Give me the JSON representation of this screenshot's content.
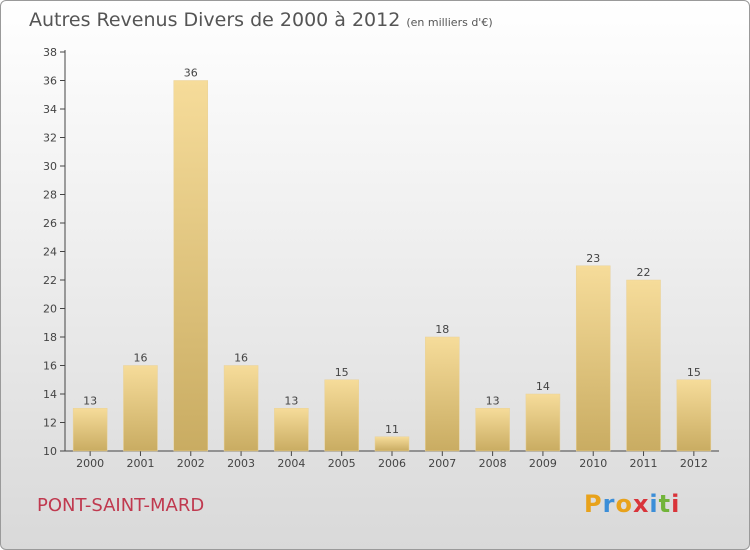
{
  "header": {
    "title": "Autres Revenus Divers de 2000 à 2012",
    "unit": "(en milliers d'€)"
  },
  "footer": {
    "commune": "PONT-SAINT-MARD",
    "logo_letters": [
      "P",
      "r",
      "o",
      "x",
      "i",
      "t",
      "i"
    ],
    "logo_colors": [
      "#e8a21b",
      "#3b8ed8",
      "#e8a21b",
      "#d9343a",
      "#3b8ed8",
      "#72b43a",
      "#d9343a"
    ]
  },
  "colors": {
    "bar_light": "#f6dc9a",
    "bar_dark": "#c9ac62",
    "title": "#555555",
    "commune": "#c0394f"
  },
  "chart_data": {
    "type": "bar",
    "title": "Autres Revenus Divers de 2000 à 2012",
    "subtitle": "(en milliers d'€)",
    "categories": [
      "2000",
      "2001",
      "2002",
      "2003",
      "2004",
      "2005",
      "2006",
      "2007",
      "2008",
      "2009",
      "2010",
      "2011",
      "2012"
    ],
    "values": [
      13,
      16,
      36,
      16,
      13,
      15,
      11,
      18,
      13,
      14,
      23,
      22,
      15
    ],
    "ylim": [
      10,
      38
    ],
    "yticks": [
      10,
      12,
      14,
      16,
      18,
      20,
      22,
      24,
      26,
      28,
      30,
      32,
      34,
      36,
      38
    ],
    "grid": false,
    "data_labels": true
  }
}
